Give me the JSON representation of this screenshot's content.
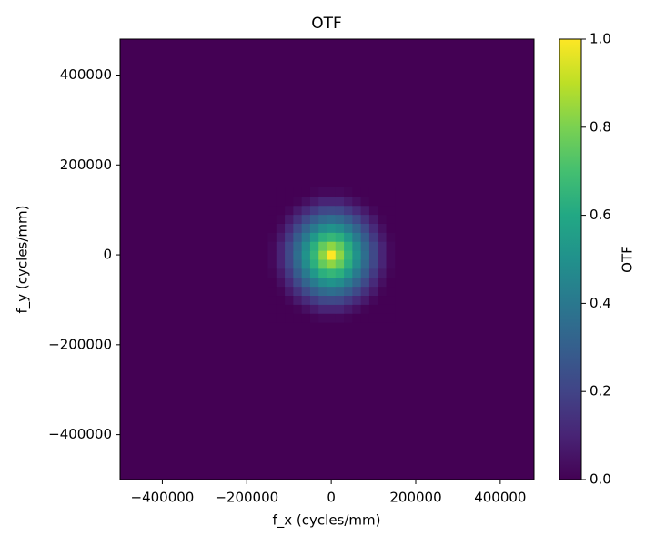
{
  "chart_data": {
    "type": "heatmap",
    "title": "OTF",
    "x_label": "f_x (cycles/mm)",
    "y_label": "f_y (cycles/mm)",
    "colorbar_label": "OTF",
    "colormap": "viridis",
    "xlim": [
      -500000,
      480000
    ],
    "ylim": [
      -500000,
      480000
    ],
    "xticks": [
      {
        "value": -400000,
        "label": "−400000"
      },
      {
        "value": -200000,
        "label": "−200000"
      },
      0,
      200000,
      400000
    ],
    "yticks": [
      {
        "value": -400000,
        "label": "−400000"
      },
      {
        "value": -200000,
        "label": "−200000"
      },
      0,
      200000,
      400000
    ],
    "clim": [
      0,
      1
    ],
    "cticks": [
      {
        "value": 0,
        "label": "0.0"
      },
      {
        "value": 0.2,
        "label": "0.2"
      },
      {
        "value": 0.4,
        "label": "0.4"
      },
      {
        "value": 0.6,
        "label": "0.6"
      },
      {
        "value": 0.8,
        "label": "0.8"
      },
      {
        "value": 1,
        "label": "1.0"
      }
    ],
    "x": [
      -140000,
      -120000,
      -100000,
      -80000,
      -60000,
      -40000,
      -20000,
      0,
      20000,
      40000,
      60000,
      80000,
      100000,
      120000,
      140000
    ],
    "y": [
      -140000,
      -120000,
      -100000,
      -80000,
      -60000,
      -40000,
      -20000,
      0,
      20000,
      40000,
      60000,
      80000,
      100000,
      120000,
      140000
    ],
    "z": [
      [
        0,
        0,
        0,
        0,
        0,
        0.01,
        0.02,
        0.02,
        0.02,
        0.01,
        0,
        0,
        0,
        0,
        0
      ],
      [
        0,
        0,
        0,
        0.01,
        0.04,
        0.07,
        0.1,
        0.1,
        0.1,
        0.07,
        0.04,
        0.01,
        0,
        0,
        0
      ],
      [
        0,
        0,
        0.02,
        0.07,
        0.12,
        0.17,
        0.21,
        0.22,
        0.21,
        0.17,
        0.12,
        0.07,
        0.02,
        0,
        0
      ],
      [
        0,
        0.01,
        0.07,
        0.14,
        0.22,
        0.29,
        0.34,
        0.36,
        0.34,
        0.29,
        0.22,
        0.14,
        0.07,
        0.01,
        0
      ],
      [
        0,
        0.04,
        0.12,
        0.22,
        0.32,
        0.41,
        0.48,
        0.51,
        0.48,
        0.41,
        0.32,
        0.22,
        0.12,
        0.04,
        0
      ],
      [
        0.01,
        0.07,
        0.17,
        0.29,
        0.41,
        0.53,
        0.63,
        0.66,
        0.63,
        0.53,
        0.41,
        0.29,
        0.17,
        0.07,
        0.01
      ],
      [
        0.02,
        0.1,
        0.21,
        0.34,
        0.48,
        0.63,
        0.76,
        0.83,
        0.76,
        0.63,
        0.48,
        0.34,
        0.21,
        0.1,
        0.02
      ],
      [
        0.02,
        0.1,
        0.22,
        0.36,
        0.51,
        0.66,
        0.83,
        1,
        0.83,
        0.66,
        0.51,
        0.36,
        0.22,
        0.1,
        0.02
      ],
      [
        0.02,
        0.1,
        0.21,
        0.34,
        0.48,
        0.63,
        0.76,
        0.83,
        0.76,
        0.63,
        0.48,
        0.34,
        0.21,
        0.1,
        0.02
      ],
      [
        0.01,
        0.07,
        0.17,
        0.29,
        0.41,
        0.53,
        0.63,
        0.66,
        0.63,
        0.53,
        0.41,
        0.29,
        0.17,
        0.07,
        0.01
      ],
      [
        0,
        0.04,
        0.12,
        0.22,
        0.32,
        0.41,
        0.48,
        0.51,
        0.48,
        0.41,
        0.32,
        0.22,
        0.12,
        0.04,
        0
      ],
      [
        0,
        0.01,
        0.07,
        0.14,
        0.22,
        0.29,
        0.34,
        0.36,
        0.34,
        0.29,
        0.22,
        0.14,
        0.07,
        0.01,
        0
      ],
      [
        0,
        0,
        0.02,
        0.07,
        0.12,
        0.17,
        0.21,
        0.22,
        0.21,
        0.17,
        0.12,
        0.07,
        0.02,
        0,
        0
      ],
      [
        0,
        0,
        0,
        0.01,
        0.04,
        0.07,
        0.1,
        0.1,
        0.1,
        0.07,
        0.04,
        0.01,
        0,
        0,
        0
      ],
      [
        0,
        0,
        0,
        0,
        0,
        0.01,
        0.02,
        0.02,
        0.02,
        0.01,
        0,
        0,
        0,
        0,
        0
      ]
    ]
  }
}
